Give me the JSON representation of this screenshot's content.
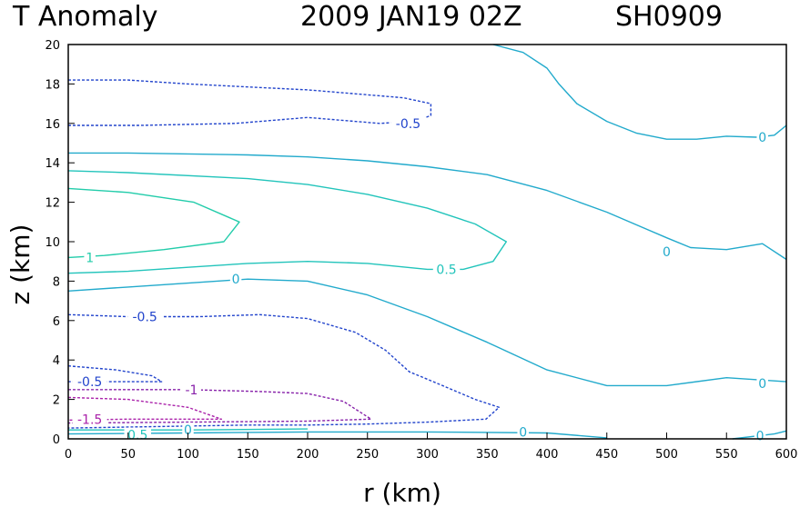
{
  "title": {
    "field": "T Anomaly",
    "date": "2009 JAN19 02Z",
    "storm": "SH0909"
  },
  "chart_data": {
    "type": "contour",
    "title": "T Anomaly   2009 JAN19 02Z   SH0909",
    "xlabel": "r (km)",
    "ylabel": "z (km)",
    "xlim": [
      0,
      600
    ],
    "ylim": [
      0,
      20
    ],
    "xticks": [
      0,
      50,
      100,
      150,
      200,
      250,
      300,
      350,
      400,
      450,
      500,
      550,
      600
    ],
    "yticks": [
      0,
      2,
      4,
      6,
      8,
      10,
      12,
      14,
      16,
      18,
      20
    ],
    "grid": false,
    "negative_contours": "dashed",
    "contours": [
      {
        "level": -0.5,
        "color": "#2244cc",
        "dashed": true,
        "points": [
          [
            0,
            18.2
          ],
          [
            50,
            18.2
          ],
          [
            100,
            18.0
          ],
          [
            200,
            17.7
          ],
          [
            280,
            17.3
          ],
          [
            303,
            17.0
          ],
          [
            303,
            16.4
          ],
          [
            290,
            16.1
          ],
          [
            260,
            16.0
          ],
          [
            200,
            16.3
          ],
          [
            140,
            16.0
          ],
          [
            60,
            15.9
          ],
          [
            0,
            15.9
          ]
        ],
        "labels": [
          {
            "text": "-0.5",
            "x": 284,
            "y": 16.0
          }
        ]
      },
      {
        "level": 0,
        "color": "#22aacc",
        "dashed": false,
        "points": [
          [
            355,
            20
          ],
          [
            380,
            19.6
          ],
          [
            400,
            18.8
          ],
          [
            410,
            18.0
          ],
          [
            425,
            17.0
          ],
          [
            450,
            16.1
          ],
          [
            475,
            15.5
          ],
          [
            500,
            15.2
          ],
          [
            525,
            15.2
          ],
          [
            550,
            15.35
          ],
          [
            575,
            15.3
          ],
          [
            590,
            15.4
          ],
          [
            600,
            15.9
          ]
        ],
        "labels": [
          {
            "text": "0",
            "x": 580,
            "y": 15.3
          }
        ]
      },
      {
        "level": 0,
        "color": "#22aacc",
        "dashed": false,
        "points": [
          [
            0,
            14.5
          ],
          [
            50,
            14.5
          ],
          [
            100,
            14.45
          ],
          [
            150,
            14.4
          ],
          [
            200,
            14.3
          ],
          [
            250,
            14.1
          ],
          [
            300,
            13.8
          ],
          [
            350,
            13.4
          ],
          [
            400,
            12.6
          ],
          [
            450,
            11.5
          ],
          [
            500,
            10.2
          ],
          [
            520,
            9.7
          ],
          [
            550,
            9.6
          ],
          [
            580,
            9.9
          ],
          [
            600,
            9.1
          ]
        ],
        "labels": [
          {
            "text": "0",
            "x": 500,
            "y": 9.5
          }
        ]
      },
      {
        "level": 0.5,
        "color": "#22c4bb",
        "dashed": false,
        "points": [
          [
            0,
            13.6
          ],
          [
            50,
            13.5
          ],
          [
            150,
            13.2
          ],
          [
            200,
            12.9
          ],
          [
            250,
            12.4
          ],
          [
            300,
            11.7
          ],
          [
            340,
            10.9
          ],
          [
            366,
            10.0
          ],
          [
            355,
            9.0
          ],
          [
            330,
            8.6
          ],
          [
            300,
            8.6
          ],
          [
            250,
            8.9
          ],
          [
            200,
            9.0
          ],
          [
            150,
            8.9
          ],
          [
            100,
            8.7
          ],
          [
            50,
            8.5
          ],
          [
            0,
            8.4
          ]
        ],
        "labels": [
          {
            "text": "0.5",
            "x": 316,
            "y": 8.6
          }
        ]
      },
      {
        "level": 1,
        "color": "#22ccaa",
        "dashed": false,
        "points": [
          [
            0,
            12.7
          ],
          [
            50,
            12.5
          ],
          [
            105,
            12.0
          ],
          [
            143,
            11.0
          ],
          [
            130,
            10.0
          ],
          [
            80,
            9.6
          ],
          [
            30,
            9.3
          ],
          [
            0,
            9.2
          ]
        ],
        "labels": [
          {
            "text": "1",
            "x": 18,
            "y": 9.2
          }
        ]
      },
      {
        "level": 0,
        "color": "#22aacc",
        "dashed": false,
        "points": [
          [
            0,
            7.5
          ],
          [
            50,
            7.7
          ],
          [
            100,
            7.9
          ],
          [
            150,
            8.1
          ],
          [
            200,
            8.0
          ],
          [
            250,
            7.3
          ],
          [
            300,
            6.2
          ],
          [
            350,
            4.9
          ],
          [
            400,
            3.5
          ],
          [
            450,
            2.7
          ],
          [
            500,
            2.7
          ],
          [
            550,
            3.1
          ],
          [
            600,
            2.9
          ]
        ],
        "labels": [
          {
            "text": "0",
            "x": 140,
            "y": 8.1
          },
          {
            "text": "0",
            "x": 580,
            "y": 2.8
          }
        ]
      },
      {
        "level": -0.5,
        "color": "#2244cc",
        "dashed": true,
        "points": [
          [
            0,
            6.3
          ],
          [
            50,
            6.2
          ],
          [
            110,
            6.2
          ],
          [
            160,
            6.3
          ],
          [
            200,
            6.1
          ],
          [
            240,
            5.4
          ],
          [
            265,
            4.5
          ],
          [
            285,
            3.4
          ],
          [
            305,
            2.9
          ],
          [
            340,
            2.0
          ],
          [
            360,
            1.6
          ],
          [
            349,
            1.0
          ],
          [
            300,
            0.85
          ],
          [
            250,
            0.75
          ],
          [
            200,
            0.7
          ],
          [
            150,
            0.7
          ],
          [
            100,
            0.65
          ],
          [
            50,
            0.6
          ],
          [
            0,
            0.55
          ]
        ],
        "labels": [
          {
            "text": "-0.5",
            "x": 64,
            "y": 6.2
          }
        ]
      },
      {
        "level": -0.5,
        "color": "#2244cc",
        "dashed": true,
        "points": [
          [
            0,
            3.7
          ],
          [
            40,
            3.5
          ],
          [
            70,
            3.2
          ],
          [
            78,
            2.9
          ],
          [
            40,
            2.9
          ],
          [
            0,
            2.9
          ]
        ],
        "labels": [
          {
            "text": "-0.5",
            "x": 18,
            "y": 2.9
          }
        ]
      },
      {
        "level": -1,
        "color": "#8822aa",
        "dashed": true,
        "points": [
          [
            0,
            2.5
          ],
          [
            100,
            2.5
          ],
          [
            160,
            2.4
          ],
          [
            200,
            2.3
          ],
          [
            230,
            1.9
          ],
          [
            253,
            1.0
          ],
          [
            200,
            0.9
          ],
          [
            100,
            0.85
          ],
          [
            0,
            0.8
          ]
        ],
        "labels": [
          {
            "text": "-1",
            "x": 103,
            "y": 2.5
          }
        ]
      },
      {
        "level": -1.5,
        "color": "#aa22aa",
        "dashed": true,
        "points": [
          [
            0,
            2.1
          ],
          [
            50,
            2.0
          ],
          [
            100,
            1.6
          ],
          [
            128,
            1.0
          ],
          [
            100,
            1.0
          ],
          [
            50,
            1.0
          ],
          [
            0,
            0.95
          ]
        ],
        "labels": [
          {
            "text": "-1.5",
            "x": 18,
            "y": 1.0
          }
        ]
      },
      {
        "level": 0.5,
        "color": "#22c4bb",
        "dashed": false,
        "points": [
          [
            0,
            0.45
          ],
          [
            100,
            0.45
          ],
          [
            200,
            0.5
          ]
        ],
        "labels": [
          {
            "text": "0.5",
            "x": 58,
            "y": 0.2
          }
        ]
      },
      {
        "level": 0,
        "color": "#22aacc",
        "dashed": false,
        "points": [
          [
            0,
            0.25
          ],
          [
            100,
            0.3
          ],
          [
            200,
            0.35
          ],
          [
            300,
            0.35
          ],
          [
            400,
            0.3
          ],
          [
            450,
            0.05
          ]
        ],
        "labels": [
          {
            "text": "0",
            "x": 100,
            "y": 0.45
          },
          {
            "text": "0",
            "x": 380,
            "y": 0.35
          }
        ]
      },
      {
        "level": 0,
        "color": "#22aacc",
        "dashed": false,
        "points": [
          [
            555,
            0
          ],
          [
            590,
            0.25
          ],
          [
            600,
            0.4
          ]
        ],
        "labels": [
          {
            "text": "0",
            "x": 578,
            "y": 0.15
          }
        ]
      }
    ]
  }
}
